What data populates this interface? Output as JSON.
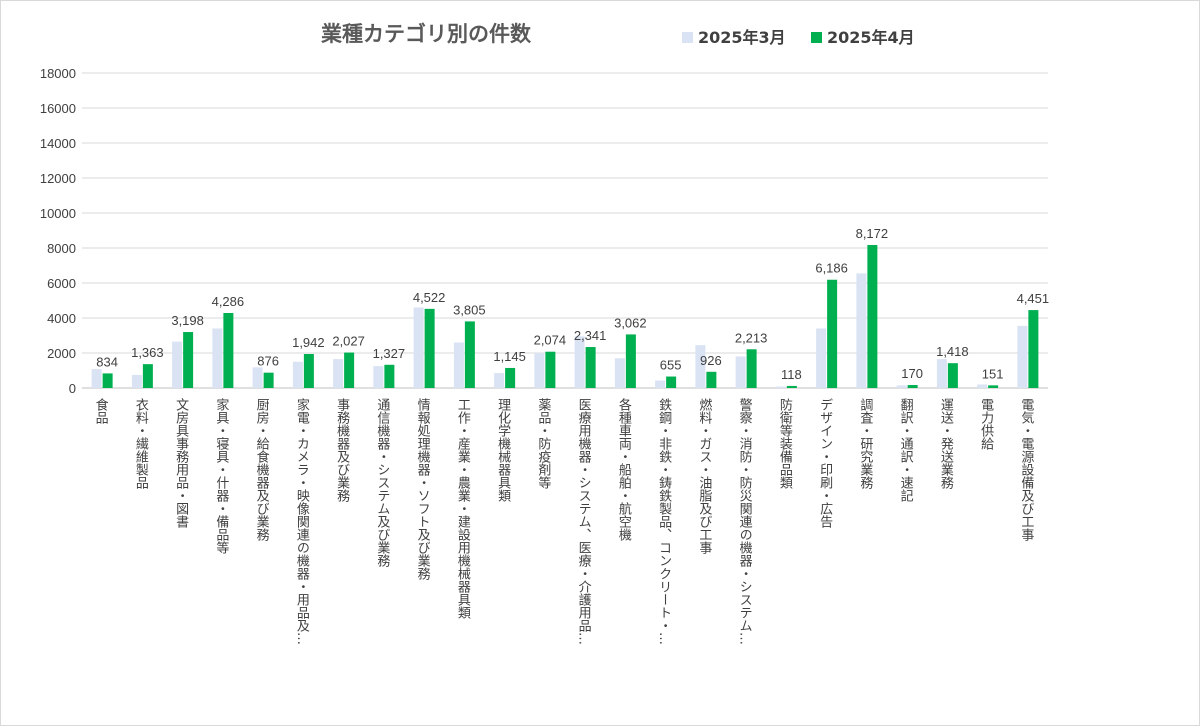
{
  "chart_data": {
    "type": "bar",
    "title": "業種カテゴリ別の件数",
    "categories": [
      "食品",
      "衣料・繊維製品",
      "文房具事務用品・図書",
      "家具・寝具・什器・備品等",
      "厨房・給食機器及び業務",
      "家電・カメラ・映像関連の機器・用品及…",
      "事務機器及び業務",
      "通信機器・システム及び業務",
      "情報処理機器・ソフト及び業務",
      "工作・産業・農業・建設用機械器具類",
      "理化学機械器具類",
      "薬品・防疫剤等",
      "医療用機器・システム、医療・介護用品…",
      "各種車両・船舶・航空機",
      "鉄鋼・非鉄・鋳鉄製品、コンクリート・…",
      "燃料・ガス・油脂及び工事",
      "警察・消防・防災関連の機器・システム…",
      "防衛等装備品類",
      "デザイン・印刷・広告",
      "調査・研究業務",
      "翻訳・通訳・速記",
      "運送・発送業務",
      "電力供給",
      "電気・電源設備及び工事"
    ],
    "series": [
      {
        "name": "2025年3月",
        "color": "#dae3f3",
        "values": [
          1080,
          750,
          2650,
          3400,
          1180,
          1500,
          1650,
          1250,
          4600,
          2600,
          850,
          2000,
          2950,
          1700,
          430,
          2450,
          1800,
          80,
          3400,
          6550,
          150,
          1650,
          200,
          3550
        ]
      },
      {
        "name": "2025年4月",
        "color": "#00b050",
        "values": [
          834,
          1363,
          3198,
          4286,
          876,
          1942,
          2027,
          1327,
          4522,
          3805,
          1145,
          2074,
          2341,
          3062,
          655,
          926,
          2213,
          118,
          6186,
          8172,
          170,
          1418,
          151,
          4451
        ],
        "labels": [
          "834",
          "1,363",
          "3,198",
          "4,286",
          "876",
          "1,942",
          "2,027",
          "1,327",
          "4,522",
          "3,805",
          "1,145",
          "2,074",
          "2,341",
          "3,062",
          "655",
          "926",
          "2,213",
          "118",
          "6,186",
          "8,172",
          "170",
          "1,418",
          "151",
          "4,451"
        ]
      }
    ],
    "yticks": [
      "0",
      "2000",
      "4000",
      "6000",
      "8000",
      "10000",
      "12000",
      "14000",
      "16000",
      "18000"
    ],
    "ylim": [
      0,
      18000
    ],
    "grid": true,
    "legend": "top-right"
  }
}
